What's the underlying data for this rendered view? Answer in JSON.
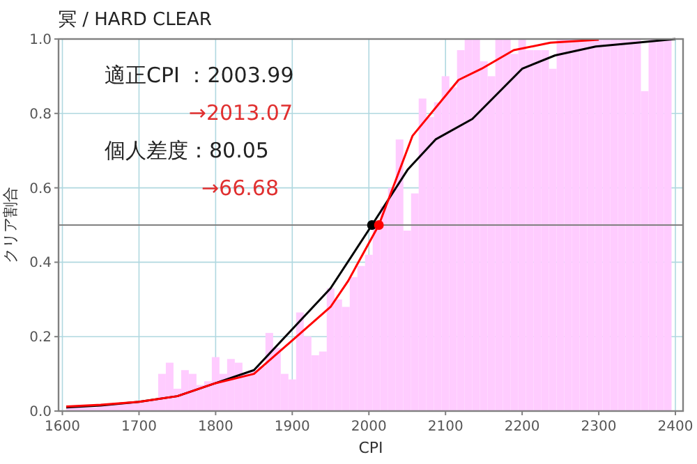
{
  "chart_data": {
    "type": "line",
    "title": "冥 / HARD CLEAR",
    "xlabel": "CPI",
    "ylabel": "クリア割合",
    "annotations": [
      "適正CPI ：2003.99",
      "→2013.07",
      "個人差度：80.05",
      "→66.68"
    ],
    "xlim": [
      1595,
      2410
    ],
    "ylim": [
      0,
      1
    ],
    "xticks": [
      1600,
      1700,
      1800,
      1900,
      2000,
      2100,
      2200,
      2300,
      2400
    ],
    "yticks": [
      {
        "value": 0,
        "label": "0.0"
      },
      {
        "value": 0.2,
        "label": "0.2"
      },
      {
        "value": 0.4,
        "label": "0.4"
      },
      {
        "value": 0.6,
        "label": "0.6"
      },
      {
        "value": 0.8,
        "label": "0.8"
      },
      {
        "value": 1,
        "label": "1.0"
      }
    ],
    "grid": true,
    "ref_lines": [
      {
        "axis": "y",
        "value": 0.5,
        "color": "#808080"
      }
    ],
    "series": [
      {
        "type": "histogram",
        "color": "#ffccff",
        "bins": [
          1605,
          1615,
          1625,
          1635,
          1645,
          1655,
          1665,
          1675,
          1685,
          1695,
          1705,
          1715,
          1725,
          1735,
          1745,
          1755,
          1765,
          1775,
          1785,
          1795,
          1805,
          1815,
          1825,
          1835,
          1845,
          1855,
          1865,
          1875,
          1885,
          1895,
          1905,
          1915,
          1925,
          1935,
          1945,
          1955,
          1965,
          1975,
          1985,
          1995,
          2005,
          2015,
          2025,
          2035,
          2045,
          2055,
          2065,
          2075,
          2085,
          2095,
          2105,
          2115,
          2125,
          2135,
          2145,
          2155,
          2165,
          2175,
          2185,
          2195,
          2205,
          2215,
          2225,
          2235,
          2245,
          2255,
          2265,
          2275,
          2285,
          2295,
          2305,
          2315,
          2325,
          2335,
          2345,
          2355,
          2365,
          2375,
          2385,
          2395
        ],
        "values": [
          0.01,
          0.01,
          0.01,
          0.01,
          0.015,
          0.02,
          0.02,
          0.02,
          0.025,
          0.025,
          0.03,
          0.03,
          0.1,
          0.13,
          0.06,
          0.11,
          0.1,
          0.07,
          0.08,
          0.145,
          0.1,
          0.14,
          0.13,
          0.1,
          0.11,
          0.12,
          0.21,
          0.17,
          0.1,
          0.085,
          0.265,
          0.2,
          0.15,
          0.16,
          0.33,
          0.3,
          0.28,
          0.36,
          0.39,
          0.42,
          0.5,
          0.55,
          0.6,
          0.73,
          0.485,
          0.585,
          0.84,
          0.79,
          0.83,
          0.9,
          0.87,
          0.97,
          1.0,
          1.0,
          0.94,
          0.9,
          1.0,
          1.0,
          0.96,
          1.0,
          0.97,
          0.97,
          0.97,
          0.92,
          1.0,
          1.0,
          1.0,
          1.0,
          1.0,
          1.0,
          1.0,
          1.0,
          1.0,
          1.0,
          1.0,
          0.86,
          1.0,
          1.0,
          1.0
        ]
      },
      {
        "color": "#000000",
        "x": [
          1605,
          1650,
          1700,
          1750,
          1800,
          1850,
          1900,
          1950,
          2004,
          2051,
          2087,
          2135,
          2200,
          2243,
          2296,
          2350,
          2400
        ],
        "values": [
          0.01,
          0.015,
          0.025,
          0.04,
          0.075,
          0.11,
          0.22,
          0.33,
          0.5,
          0.65,
          0.73,
          0.785,
          0.92,
          0.956,
          0.98,
          0.99,
          1.0
        ]
      },
      {
        "color": "#ff0000",
        "x": [
          1605,
          1650,
          1700,
          1750,
          1800,
          1850,
          1900,
          1950,
          1973,
          2013,
          2057,
          2117,
          2147,
          2189,
          2237,
          2300
        ],
        "values": [
          0.012,
          0.017,
          0.025,
          0.04,
          0.075,
          0.1,
          0.19,
          0.28,
          0.35,
          0.5,
          0.74,
          0.89,
          0.92,
          0.97,
          0.99,
          0.998
        ]
      },
      {
        "type": "scatter",
        "marker": "circle",
        "color": "#000000",
        "x": [
          2003.99
        ],
        "values": [
          0.5
        ]
      },
      {
        "type": "scatter",
        "marker": "circle",
        "color": "#ff0000",
        "x": [
          2013.07
        ],
        "values": [
          0.5
        ]
      }
    ]
  }
}
